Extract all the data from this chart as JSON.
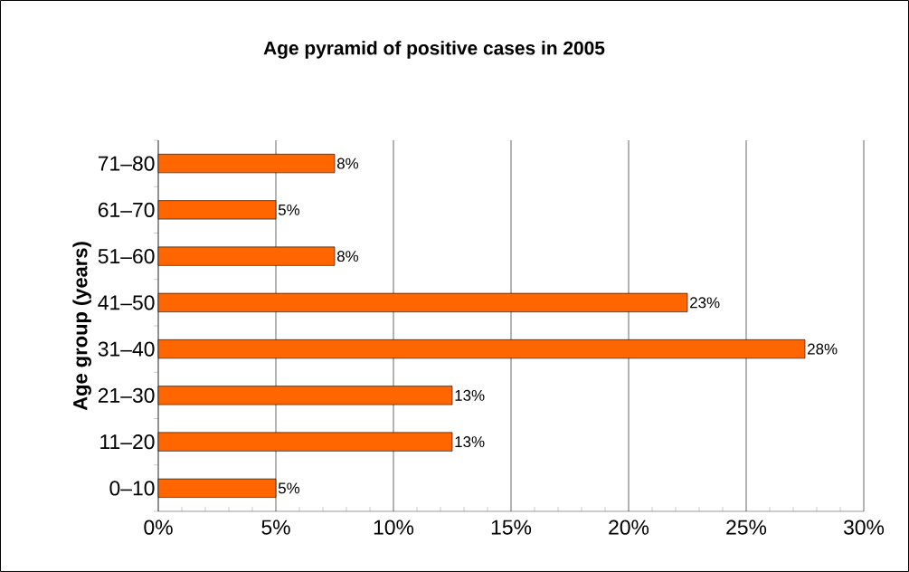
{
  "chart_data": {
    "type": "bar",
    "orientation": "horizontal",
    "title": "Age pyramid of positive cases in 2005",
    "ylabel": "Age group (years)",
    "categories": [
      "71–80",
      "61–70",
      "51–60",
      "41–50",
      "31–40",
      "21–30",
      "11–20",
      "0–10"
    ],
    "values": [
      7.5,
      5,
      7.5,
      22.5,
      27.5,
      12.5,
      12.5,
      5
    ],
    "value_labels": [
      "8%",
      "5%",
      "8%",
      "23%",
      "28%",
      "13%",
      "13%",
      "5%"
    ],
    "color": "#ff6600",
    "xlim": [
      0,
      30
    ],
    "xticks": [
      {
        "value": 0,
        "label": "0%"
      },
      {
        "value": 5,
        "label": "5%"
      },
      {
        "value": 10,
        "label": "10%"
      },
      {
        "value": 15,
        "label": "15%"
      },
      {
        "value": 20,
        "label": "20%"
      },
      {
        "value": 25,
        "label": "25%"
      },
      {
        "value": 30,
        "label": "30%"
      }
    ],
    "grid": "x"
  }
}
